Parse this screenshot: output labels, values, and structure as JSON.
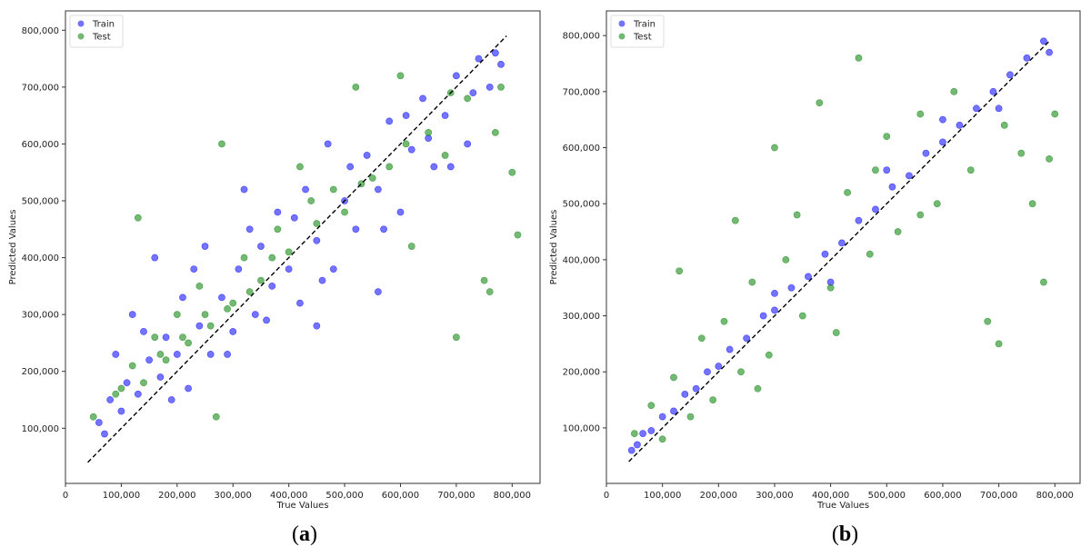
{
  "chart_data": [
    {
      "type": "scatter",
      "caption_letter": "a",
      "xlabel": "True Values",
      "ylabel": "Predicted Values",
      "xlim": [
        0,
        850000
      ],
      "ylim": [
        3000,
        834000
      ],
      "xticks": [
        0,
        100000,
        200000,
        300000,
        400000,
        500000,
        600000,
        700000,
        800000
      ],
      "xtick_labels": [
        "0",
        "100,000",
        "200,000",
        "300,000",
        "400,000",
        "500,000",
        "600,000",
        "700,000",
        "800,000"
      ],
      "yticks": [
        100000,
        200000,
        300000,
        400000,
        500000,
        600000,
        700000,
        800000
      ],
      "ytick_labels": [
        "100,000",
        "200,000",
        "300,000",
        "400,000",
        "500,000",
        "600,000",
        "700,000",
        "800,000"
      ],
      "grid": false,
      "legend_position": "top-left",
      "reference_line": {
        "style": "dashed",
        "color": "#000000",
        "from": [
          40000,
          40000
        ],
        "to": [
          790000,
          790000
        ]
      },
      "series": [
        {
          "name": "Train",
          "color": "#0000ff",
          "points": [
            [
              60000,
              110000
            ],
            [
              80000,
              150000
            ],
            [
              90000,
              230000
            ],
            [
              100000,
              130000
            ],
            [
              110000,
              180000
            ],
            [
              120000,
              300000
            ],
            [
              130000,
              160000
            ],
            [
              150000,
              220000
            ],
            [
              160000,
              400000
            ],
            [
              170000,
              190000
            ],
            [
              180000,
              260000
            ],
            [
              200000,
              230000
            ],
            [
              210000,
              330000
            ],
            [
              220000,
              170000
            ],
            [
              240000,
              280000
            ],
            [
              250000,
              420000
            ],
            [
              260000,
              230000
            ],
            [
              280000,
              330000
            ],
            [
              300000,
              270000
            ],
            [
              310000,
              380000
            ],
            [
              320000,
              520000
            ],
            [
              340000,
              300000
            ],
            [
              350000,
              420000
            ],
            [
              370000,
              350000
            ],
            [
              380000,
              480000
            ],
            [
              400000,
              380000
            ],
            [
              420000,
              320000
            ],
            [
              430000,
              520000
            ],
            [
              450000,
              430000
            ],
            [
              470000,
              600000
            ],
            [
              480000,
              380000
            ],
            [
              500000,
              500000
            ],
            [
              520000,
              450000
            ],
            [
              540000,
              580000
            ],
            [
              560000,
              520000
            ],
            [
              580000,
              640000
            ],
            [
              600000,
              480000
            ],
            [
              620000,
              590000
            ],
            [
              640000,
              680000
            ],
            [
              660000,
              560000
            ],
            [
              680000,
              650000
            ],
            [
              700000,
              720000
            ],
            [
              720000,
              600000
            ],
            [
              740000,
              750000
            ],
            [
              760000,
              700000
            ],
            [
              780000,
              740000
            ],
            [
              450000,
              280000
            ],
            [
              560000,
              340000
            ],
            [
              70000,
              90000
            ],
            [
              140000,
              270000
            ],
            [
              190000,
              150000
            ],
            [
              230000,
              380000
            ],
            [
              290000,
              230000
            ],
            [
              330000,
              450000
            ],
            [
              360000,
              290000
            ],
            [
              410000,
              470000
            ],
            [
              460000,
              360000
            ],
            [
              510000,
              560000
            ],
            [
              570000,
              450000
            ],
            [
              610000,
              650000
            ],
            [
              650000,
              610000
            ],
            [
              690000,
              560000
            ],
            [
              730000,
              690000
            ],
            [
              770000,
              760000
            ]
          ]
        },
        {
          "name": "Test",
          "color": "#008000",
          "points": [
            [
              50000,
              120000
            ],
            [
              90000,
              160000
            ],
            [
              120000,
              210000
            ],
            [
              140000,
              180000
            ],
            [
              160000,
              260000
            ],
            [
              180000,
              220000
            ],
            [
              200000,
              300000
            ],
            [
              220000,
              250000
            ],
            [
              240000,
              350000
            ],
            [
              260000,
              280000
            ],
            [
              280000,
              600000
            ],
            [
              300000,
              320000
            ],
            [
              320000,
              400000
            ],
            [
              350000,
              360000
            ],
            [
              380000,
              450000
            ],
            [
              400000,
              410000
            ],
            [
              420000,
              560000
            ],
            [
              450000,
              460000
            ],
            [
              480000,
              520000
            ],
            [
              500000,
              480000
            ],
            [
              520000,
              700000
            ],
            [
              550000,
              540000
            ],
            [
              580000,
              560000
            ],
            [
              600000,
              720000
            ],
            [
              620000,
              420000
            ],
            [
              650000,
              620000
            ],
            [
              680000,
              580000
            ],
            [
              700000,
              260000
            ],
            [
              720000,
              680000
            ],
            [
              750000,
              360000
            ],
            [
              770000,
              620000
            ],
            [
              800000,
              550000
            ],
            [
              810000,
              440000
            ],
            [
              760000,
              340000
            ],
            [
              130000,
              470000
            ],
            [
              270000,
              120000
            ],
            [
              100000,
              170000
            ],
            [
              170000,
              230000
            ],
            [
              210000,
              260000
            ],
            [
              250000,
              300000
            ],
            [
              290000,
              310000
            ],
            [
              330000,
              340000
            ],
            [
              370000,
              400000
            ],
            [
              440000,
              500000
            ],
            [
              530000,
              530000
            ],
            [
              610000,
              600000
            ],
            [
              690000,
              690000
            ],
            [
              780000,
              700000
            ]
          ]
        }
      ]
    },
    {
      "type": "scatter",
      "caption_letter": "b",
      "xlabel": "True Values",
      "ylabel": "Predicted Values",
      "xlim": [
        0,
        845000
      ],
      "ylim": [
        1000,
        844000
      ],
      "xticks": [
        0,
        100000,
        200000,
        300000,
        400000,
        500000,
        600000,
        700000,
        800000
      ],
      "xtick_labels": [
        "0",
        "100,000",
        "200,000",
        "300,000",
        "400,000",
        "500,000",
        "600,000",
        "700,000",
        "800,000"
      ],
      "yticks": [
        100000,
        200000,
        300000,
        400000,
        500000,
        600000,
        700000,
        800000
      ],
      "ytick_labels": [
        "100,000",
        "200,000",
        "300,000",
        "400,000",
        "500,000",
        "600,000",
        "700,000",
        "800,000"
      ],
      "grid": false,
      "legend_position": "top-left",
      "reference_line": {
        "style": "dashed",
        "color": "#000000",
        "from": [
          40000,
          40000
        ],
        "to": [
          790000,
          790000
        ]
      },
      "series": [
        {
          "name": "Train",
          "color": "#0000ff",
          "points": [
            [
              45000,
              60000
            ],
            [
              55000,
              70000
            ],
            [
              65000,
              90000
            ],
            [
              80000,
              95000
            ],
            [
              100000,
              120000
            ],
            [
              120000,
              130000
            ],
            [
              140000,
              160000
            ],
            [
              160000,
              170000
            ],
            [
              180000,
              200000
            ],
            [
              200000,
              210000
            ],
            [
              220000,
              240000
            ],
            [
              250000,
              260000
            ],
            [
              280000,
              300000
            ],
            [
              300000,
              310000
            ],
            [
              330000,
              350000
            ],
            [
              360000,
              370000
            ],
            [
              390000,
              410000
            ],
            [
              420000,
              430000
            ],
            [
              450000,
              470000
            ],
            [
              480000,
              490000
            ],
            [
              510000,
              530000
            ],
            [
              540000,
              550000
            ],
            [
              570000,
              590000
            ],
            [
              600000,
              610000
            ],
            [
              630000,
              640000
            ],
            [
              660000,
              670000
            ],
            [
              690000,
              700000
            ],
            [
              720000,
              730000
            ],
            [
              750000,
              760000
            ],
            [
              780000,
              790000
            ],
            [
              790000,
              770000
            ],
            [
              500000,
              560000
            ],
            [
              400000,
              360000
            ],
            [
              300000,
              340000
            ],
            [
              700000,
              670000
            ],
            [
              600000,
              650000
            ]
          ]
        },
        {
          "name": "Test",
          "color": "#008000",
          "points": [
            [
              50000,
              90000
            ],
            [
              80000,
              140000
            ],
            [
              100000,
              80000
            ],
            [
              120000,
              190000
            ],
            [
              150000,
              120000
            ],
            [
              170000,
              260000
            ],
            [
              190000,
              150000
            ],
            [
              210000,
              290000
            ],
            [
              240000,
              200000
            ],
            [
              260000,
              360000
            ],
            [
              290000,
              230000
            ],
            [
              300000,
              600000
            ],
            [
              320000,
              400000
            ],
            [
              350000,
              300000
            ],
            [
              380000,
              680000
            ],
            [
              400000,
              350000
            ],
            [
              430000,
              520000
            ],
            [
              450000,
              760000
            ],
            [
              470000,
              410000
            ],
            [
              500000,
              620000
            ],
            [
              520000,
              450000
            ],
            [
              560000,
              660000
            ],
            [
              590000,
              500000
            ],
            [
              620000,
              700000
            ],
            [
              650000,
              560000
            ],
            [
              680000,
              290000
            ],
            [
              700000,
              250000
            ],
            [
              710000,
              640000
            ],
            [
              740000,
              590000
            ],
            [
              760000,
              500000
            ],
            [
              780000,
              360000
            ],
            [
              800000,
              660000
            ],
            [
              790000,
              580000
            ],
            [
              130000,
              380000
            ],
            [
              230000,
              470000
            ],
            [
              270000,
              170000
            ],
            [
              340000,
              480000
            ],
            [
              410000,
              270000
            ],
            [
              480000,
              560000
            ],
            [
              560000,
              480000
            ]
          ]
        }
      ]
    }
  ]
}
